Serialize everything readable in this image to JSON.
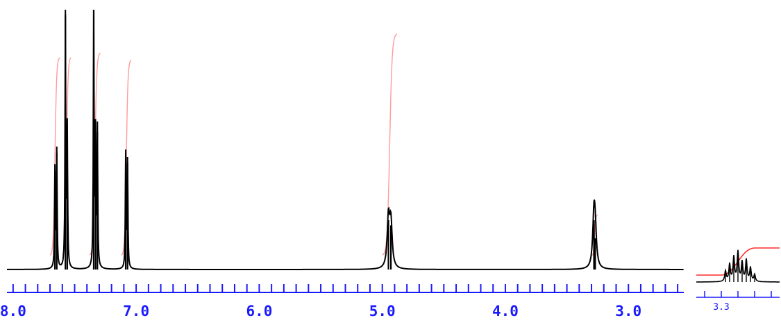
{
  "chart_data": [
    {
      "type": "line",
      "title": "",
      "xlabel": "",
      "ylabel": "",
      "x_unit": "ppm",
      "xlim": [
        8.05,
        2.55
      ],
      "x_reversed": true,
      "ylim": [
        0,
        1.0
      ],
      "grid": false,
      "colors": {
        "spectrum": "#000000",
        "integral": "#ff9b9b",
        "axis": "#1a1aff"
      },
      "x_major_ticks": [
        8.0,
        7.0,
        6.0,
        5.0,
        4.0,
        3.0
      ],
      "x_tick_labels": [
        "8.0",
        "7.0",
        "6.0",
        "5.0",
        "4.0",
        "3.0"
      ],
      "x_minor_step": 0.1,
      "peaks": [
        {
          "x": 7.66,
          "height": 0.38
        },
        {
          "x": 7.645,
          "height": 0.45
        },
        {
          "x": 7.575,
          "height": 0.98
        },
        {
          "x": 7.56,
          "height": 0.53
        },
        {
          "x": 7.345,
          "height": 1.0
        },
        {
          "x": 7.33,
          "height": 0.5
        },
        {
          "x": 7.315,
          "height": 0.53
        },
        {
          "x": 7.085,
          "height": 0.44
        },
        {
          "x": 7.07,
          "height": 0.41
        },
        {
          "x": 4.95,
          "height": 0.19
        },
        {
          "x": 4.93,
          "height": 0.17
        },
        {
          "x": 3.28,
          "height": 0.19
        },
        {
          "x": 3.27,
          "height": 0.12
        }
      ],
      "integral_segments": [
        {
          "from": 7.7,
          "to": 7.62,
          "rise": 0.83
        },
        {
          "from": 7.6,
          "to": 7.53,
          "rise": 0.83
        },
        {
          "from": 7.38,
          "to": 7.29,
          "rise": 0.85
        },
        {
          "from": 7.12,
          "to": 7.04,
          "rise": 0.82
        },
        {
          "from": 5.0,
          "to": 4.88,
          "rise": 0.93
        },
        {
          "from": 3.3,
          "to": 3.25,
          "rise": 0.17
        }
      ]
    },
    {
      "type": "line",
      "title": "",
      "xlabel": "",
      "ylabel": "",
      "x_unit": "ppm",
      "xlim": [
        3.36,
        3.16
      ],
      "x_reversed": true,
      "grid": false,
      "colors": {
        "spectrum": "#000000",
        "integral": "#ff2a2a",
        "axis": "#1a1aff"
      },
      "x_tick_labels": [
        "3.3"
      ],
      "description_of_inset": "expanded multiplet",
      "multiplet_peaks": [
        {
          "x": 3.29,
          "height": 0.3
        },
        {
          "x": 3.28,
          "height": 0.5
        },
        {
          "x": 3.27,
          "height": 0.7
        },
        {
          "x": 3.26,
          "height": 0.85
        },
        {
          "x": 3.25,
          "height": 0.55
        },
        {
          "x": 3.24,
          "height": 0.62
        },
        {
          "x": 3.23,
          "height": 0.4
        },
        {
          "x": 3.22,
          "height": 0.2
        }
      ]
    }
  ]
}
